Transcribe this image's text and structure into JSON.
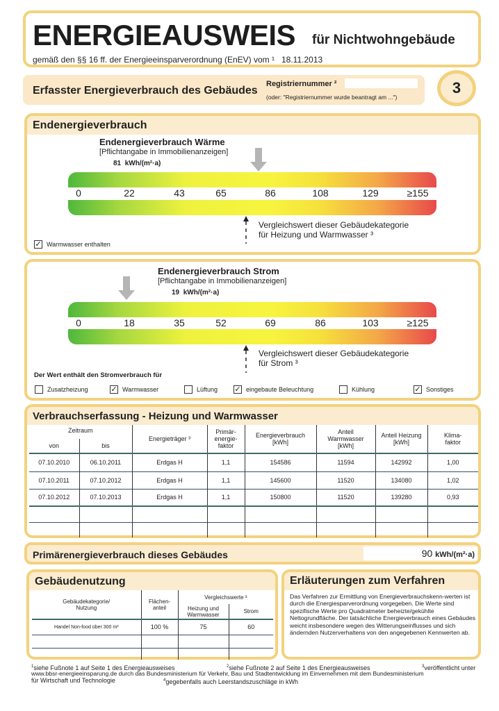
{
  "header": {
    "title": "ENERGIEAUSWEIS",
    "subtitle": "für Nichtwohngebäude",
    "legal": "gemäß den §§ 16 ff. der Energieeinsparverordnung (EnEV) vom ¹",
    "date": "18.11.2013"
  },
  "registry": {
    "heading": "Erfasster Energieverbrauch des Gebäudes",
    "label": "Registriernummer ²",
    "note": "(oder: \"Registriernummer wurde beantragt am ...\")",
    "value": "",
    "page": "3"
  },
  "waerme": {
    "section_title": "Endenergieverbrauch",
    "title": "Endenergieverbrauch Wärme",
    "subtitle": "[Pflichtangabe in Immobilienanzeigen]",
    "value": "81",
    "unit": "kWh/(m²·a)",
    "ticks": [
      "0",
      "22",
      "43",
      "65",
      "86",
      "108",
      "129",
      "≥155"
    ],
    "compare_line1": "Vergleichswert dieser Gebäudekategorie",
    "compare_line2": "für Heizung und Warmwasser ³",
    "warmwater_label": "Warmwasser enthalten",
    "warmwater_checked": true
  },
  "strom": {
    "title": "Endenergieverbrauch Strom",
    "subtitle": "[Pflichtangabe in Immobilienanzeigen]",
    "value": "19",
    "unit": "kWh/(m²·a)",
    "ticks": [
      "0",
      "18",
      "35",
      "52",
      "69",
      "86",
      "103",
      "≥125"
    ],
    "compare_line1": "Vergleichswert dieser Gebäudekategorie",
    "compare_line2": "für Strom ³",
    "contains_label": "Der Wert enthält den Stromverbrauch für",
    "options": [
      {
        "label": "Zusatzheizung",
        "checked": false
      },
      {
        "label": "Warmwasser",
        "checked": true
      },
      {
        "label": "Lüftung",
        "checked": false
      },
      {
        "label": "eingebaute Beleuchtung",
        "checked": true
      },
      {
        "label": "Kühlung",
        "checked": false
      },
      {
        "label": "Sonstiges",
        "checked": true
      }
    ]
  },
  "consumption": {
    "title": "Verbrauchserfassung - Heizung und Warmwasser",
    "headers": {
      "period": "Zeitraum",
      "from": "von",
      "to": "bis",
      "carrier": "Energieträger ³",
      "pef1": "Primär-",
      "pef2": "energie-",
      "pef3": "faktor",
      "ev1": "Energieverbrauch",
      "ev2": "[kWh]",
      "ww1": "Anteil",
      "ww2": "Warmwasser",
      "ww3": "[kWh]",
      "h1": "Anteil Heizung",
      "h2": "[kWh]",
      "k1": "Klima-",
      "k2": "faktor"
    },
    "rows": [
      [
        "07.10.2010",
        "06.10.2011",
        "Erdgas H",
        "1,1",
        "154586",
        "11594",
        "142992",
        "1,00"
      ],
      [
        "07.10.2011",
        "07.10.2012",
        "Erdgas H",
        "1,1",
        "145600",
        "11520",
        "134080",
        "1,02"
      ],
      [
        "07.10.2012",
        "07.10.2013",
        "Erdgas H",
        "1,1",
        "150800",
        "11520",
        "139280",
        "0,93"
      ]
    ]
  },
  "primary": {
    "label": "Primärenergieverbrauch dieses Gebäudes",
    "value": "90",
    "unit": "kWh/(m²·a)"
  },
  "usage": {
    "title": "Gebäudenutzung",
    "h_cat1": "Gebäudekategorie/",
    "h_cat2": "Nutzung",
    "h_area1": "Flächen-",
    "h_area2": "anteil",
    "h_cmp": "Vergleichswerte ³",
    "h_heat1": "Heizung und",
    "h_heat2": "Warmwasser",
    "h_strom": "Strom",
    "row": {
      "category": "Handel Non-food über 300 m²",
      "share": "100 %",
      "heat": "75",
      "strom": "60"
    }
  },
  "explain": {
    "title": "Erläuterungen zum Verfahren",
    "text": "Das Verfahren zur Ermittlung von Energieverbrauchskenn-werten ist durch die Energiesparverordnung vorgegeben. Die Werte sind spezifische Werte pro Quadratmeter beheizte/gekühlte Nettogrundfläche. Der tatsächliche Energieverbrauch eines Gebäudes weicht insbesondere wegen des Witterungseinflusses und sich ändernden Nutzerverhaltens von den angegebenen Kennwerten ab."
  },
  "footnotes": {
    "f1": "siehe Fußnote 1 auf Seite 1 des Energieausweises",
    "f2": "siehe Fußnote 2 auf Seite 1 des Energieausweises",
    "f3a": "veröffentlicht unter",
    "f3b": "www.bbsr-energieeinsparung.de durch das Bundesministerium für Verkehr, Bau und Stadtentwicklung im Einvernehmen mit dem Bundesministerium",
    "f3c": "für Wirtschaft und Technologie",
    "f4": "gegebenfalls auch Leerstandszuschläge in kWh",
    "n1": "1",
    "n2": "2",
    "n3": "3",
    "n4": "4"
  }
}
